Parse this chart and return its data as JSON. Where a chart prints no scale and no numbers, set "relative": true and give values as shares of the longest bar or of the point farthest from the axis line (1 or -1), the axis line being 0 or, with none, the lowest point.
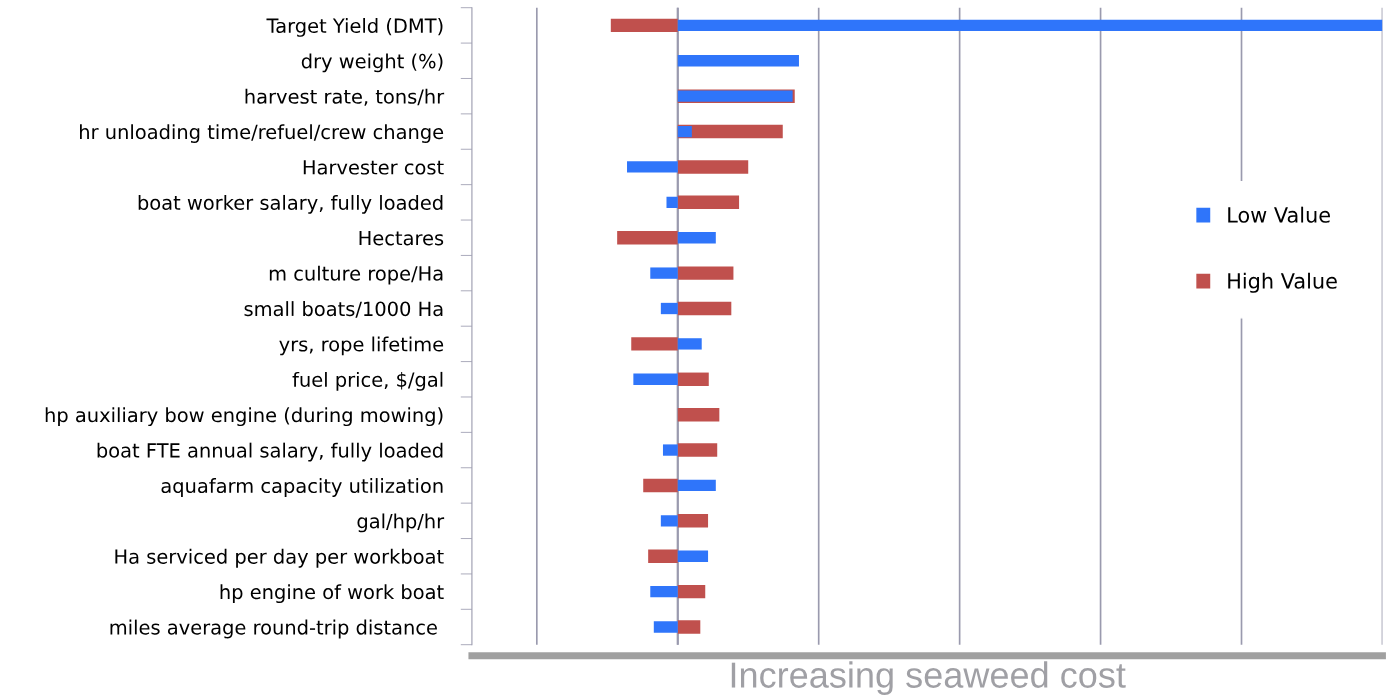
{
  "chart_data": {
    "type": "bar",
    "orientation": "horizontal",
    "relative": true,
    "xlabel": "Increasing seaweed cost",
    "categories": [
      "Target Yield (DMT)",
      "dry weight (%)",
      "harvest rate, tons/hr",
      "hr unloading time/refuel/crew change",
      "Harvester cost",
      "boat worker salary, fully loaded",
      "Hectares",
      "m culture rope/Ha",
      "small boats/1000 Ha",
      "yrs, rope lifetime",
      "fuel price, $/gal",
      "hp auxiliary bow engine (during mowing)",
      "boat FTE annual salary, fully loaded",
      "aquafarm capacity utilization",
      "gal/hp/hr",
      "Ha serviced per day per workboat",
      "hp engine of work boat",
      "miles average round-trip distance "
    ],
    "series": [
      {
        "name": "Low Value",
        "color": "#2f75fa",
        "values": [
          1,
          0.172,
          0.163,
          0.02,
          -0.072,
          -0.016,
          0.054,
          -0.039,
          -0.024,
          0.034,
          -0.063,
          null,
          -0.021,
          0.054,
          -0.024,
          0.043,
          -0.039,
          -0.034
        ]
      },
      {
        "name": "High Value",
        "color": "#c0504d",
        "values": [
          -0.095,
          null,
          0.166,
          0.149,
          0.1,
          0.087,
          -0.086,
          0.079,
          0.076,
          -0.066,
          0.044,
          0.059,
          0.056,
          -0.049,
          0.043,
          -0.042,
          0.039,
          0.032
        ]
      }
    ],
    "grid": "x",
    "legend": "right",
    "tick_labels": "y"
  }
}
